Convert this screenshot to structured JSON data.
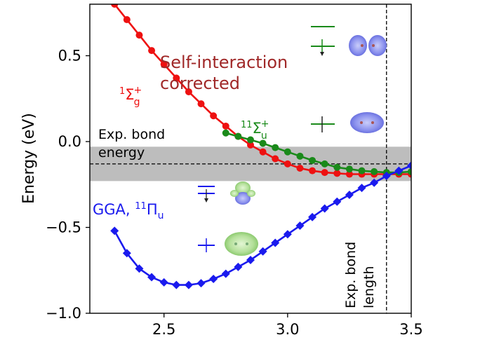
{
  "chart_data": {
    "type": "line",
    "title": "",
    "xlabel": "",
    "ylabel": "Energy (eV)",
    "xlim": [
      2.2,
      3.5
    ],
    "ylim": [
      -1.0,
      0.8
    ],
    "x_ticks": [
      2.5,
      3.0,
      3.5
    ],
    "y_ticks": [
      -1.0,
      -0.5,
      0.0,
      0.5
    ],
    "x_tick_labels": [
      "2.5",
      "3.0",
      "3.5"
    ],
    "y_tick_labels": [
      "−1.0",
      "−0.5",
      "0.0",
      "0.5"
    ],
    "grid": false,
    "series": [
      {
        "name": "1Σg+",
        "color": "#ee1111",
        "marker": "circle",
        "x": [
          2.3,
          2.35,
          2.4,
          2.45,
          2.5,
          2.55,
          2.6,
          2.65,
          2.7,
          2.75,
          2.8,
          2.85,
          2.9,
          2.95,
          3.0,
          3.05,
          3.1,
          3.15,
          3.2,
          3.25,
          3.3,
          3.35,
          3.4,
          3.45,
          3.5
        ],
        "y": [
          0.8,
          0.71,
          0.62,
          0.53,
          0.45,
          0.37,
          0.29,
          0.22,
          0.15,
          0.09,
          0.03,
          -0.02,
          -0.06,
          -0.1,
          -0.13,
          -0.155,
          -0.17,
          -0.18,
          -0.185,
          -0.19,
          -0.19,
          -0.19,
          -0.19,
          -0.19,
          -0.19
        ]
      },
      {
        "name": "11Σu+",
        "color": "#1a8a1a",
        "marker": "circle",
        "x": [
          2.75,
          2.8,
          2.85,
          2.9,
          2.95,
          3.0,
          3.05,
          3.1,
          3.15,
          3.2,
          3.25,
          3.3,
          3.35,
          3.4,
          3.45,
          3.5
        ],
        "y": [
          0.05,
          0.03,
          0.01,
          -0.01,
          -0.035,
          -0.06,
          -0.085,
          -0.11,
          -0.13,
          -0.15,
          -0.16,
          -0.17,
          -0.175,
          -0.18,
          -0.18,
          -0.175
        ]
      },
      {
        "name": "GGA, 11Πu",
        "color": "#1a1aee",
        "marker": "diamond",
        "x": [
          2.3,
          2.35,
          2.4,
          2.45,
          2.5,
          2.55,
          2.6,
          2.65,
          2.7,
          2.75,
          2.8,
          2.85,
          2.9,
          2.95,
          3.0,
          3.05,
          3.1,
          3.15,
          3.2,
          3.25,
          3.3,
          3.35,
          3.4,
          3.45,
          3.5
        ],
        "y": [
          -0.52,
          -0.65,
          -0.74,
          -0.79,
          -0.82,
          -0.835,
          -0.835,
          -0.825,
          -0.8,
          -0.77,
          -0.73,
          -0.69,
          -0.64,
          -0.59,
          -0.54,
          -0.49,
          -0.44,
          -0.39,
          -0.35,
          -0.31,
          -0.27,
          -0.24,
          -0.2,
          -0.17,
          -0.14
        ]
      }
    ],
    "reference_lines": [
      {
        "type": "horizontal_band",
        "y_center": -0.13,
        "y_range": [
          -0.23,
          -0.03
        ],
        "color": "#bdbdbd"
      },
      {
        "type": "vertical",
        "x": 3.4
      }
    ],
    "annotations": {
      "self_interaction": [
        "Self-interaction",
        "corrected"
      ],
      "sigma_g_label": "1Σg+",
      "sigma_u_label": "11Σu+",
      "gga_label": "GGA, 11Πu",
      "exp_energy": [
        "Exp. bond",
        "energy"
      ],
      "exp_length": [
        "Exp. bond",
        "length"
      ]
    }
  }
}
